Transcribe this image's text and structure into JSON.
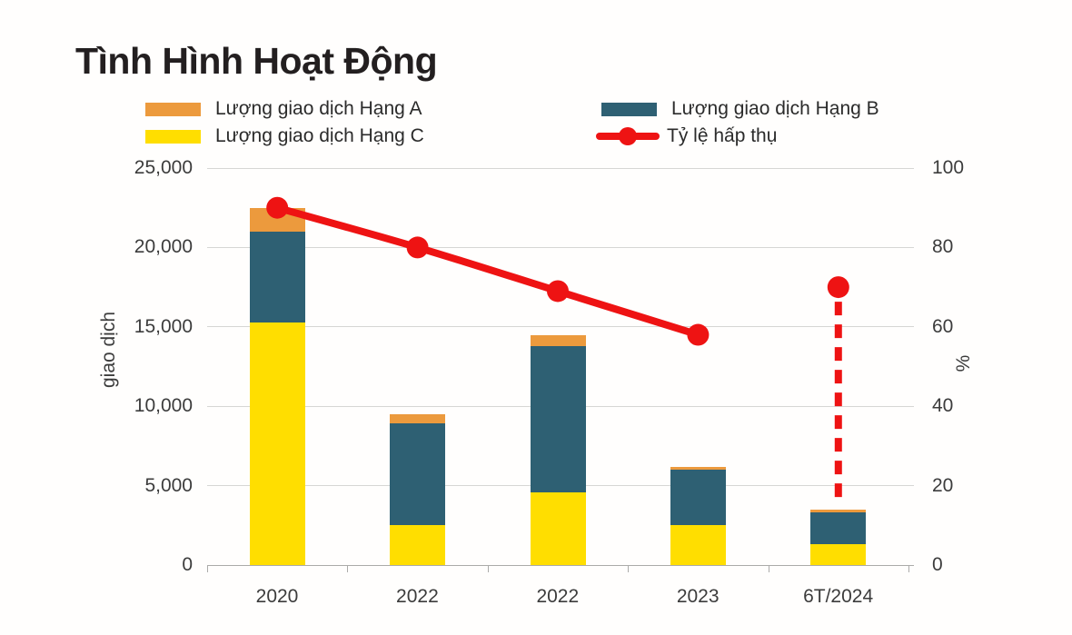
{
  "title": "Tình Hình Hoạt Động",
  "colors": {
    "hang_a_orange": "#ec9a3d",
    "hang_b_teal": "#2e6073",
    "hang_c_yellow": "#ffde00",
    "line_red": "#ee1313",
    "gridline": "#d6d6d4",
    "axis": "#ababa9",
    "text": "#3c3c3c",
    "title_text": "#231f20"
  },
  "legend": {
    "items": [
      {
        "label": "Lượng giao dịch Hạng A",
        "glyph": "square",
        "color": "#ec9a3d"
      },
      {
        "label": "Lượng giao dịch Hạng B",
        "glyph": "square",
        "color": "#2e6073"
      },
      {
        "label": "Lượng giao dịch Hạng C",
        "glyph": "square",
        "color": "#ffde00"
      },
      {
        "label": "Tỷ lệ hấp thụ",
        "glyph": "line-dot",
        "color": "#ee1313"
      }
    ]
  },
  "chart_data": {
    "type": "combo-stacked-bar-line",
    "categories": [
      "2020",
      "2022",
      "2022",
      "2023",
      "6T/2024"
    ],
    "series": [
      {
        "name": "Lượng giao dịch Hạng C",
        "type": "bar",
        "stack": "volume",
        "color": "#ffde00",
        "axis": "left",
        "values": [
          15300,
          2500,
          4600,
          2500,
          1300
        ]
      },
      {
        "name": "Lượng giao dịch Hạng B",
        "type": "bar",
        "stack": "volume",
        "color": "#2e6073",
        "axis": "left",
        "values": [
          5700,
          6400,
          9200,
          3500,
          2000
        ]
      },
      {
        "name": "Lượng giao dịch Hạng A",
        "type": "bar",
        "stack": "volume",
        "color": "#ec9a3d",
        "axis": "left",
        "values": [
          1500,
          600,
          700,
          200,
          200
        ]
      },
      {
        "name": "Tỷ lệ hấp thụ",
        "type": "line",
        "color": "#ee1313",
        "axis": "right",
        "values": [
          90,
          80,
          69,
          58,
          70
        ],
        "connected_points": 4,
        "last_point_dashed_stem": true
      }
    ],
    "stack_totals": [
      22500,
      9500,
      14500,
      6200,
      3500
    ],
    "left_axis": {
      "label": "giao dịch",
      "min": 0,
      "max": 25000,
      "ticks": [
        "25,000",
        "20,000",
        "15,000",
        "10,000",
        "5,000",
        "0"
      ]
    },
    "right_axis": {
      "label": "%",
      "min": 0,
      "max": 100,
      "ticks": [
        "100",
        "80",
        "60",
        "40",
        "20",
        "0"
      ]
    },
    "grid": "horizontal-only",
    "legend_position": "top"
  }
}
